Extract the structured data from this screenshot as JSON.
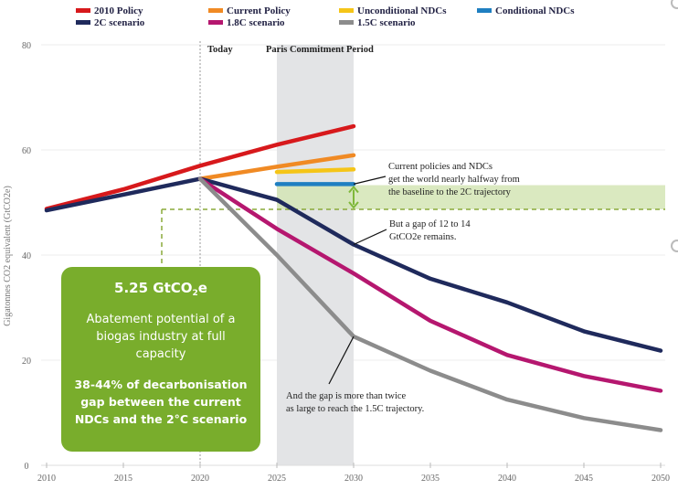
{
  "chart_data": {
    "type": "line",
    "title": "",
    "xlabel": "",
    "ylabel": "Gigatonnes CO2 equivalent (GtCO2e)",
    "xlim": [
      2010,
      2050
    ],
    "ylim": [
      0,
      80
    ],
    "xticks": [
      2010,
      2015,
      2020,
      2025,
      2030,
      2035,
      2040,
      2045,
      2050
    ],
    "yticks": [
      0,
      20,
      40,
      60,
      80
    ],
    "grid": "horizontal",
    "legend_position": "top",
    "legend": [
      {
        "name": "2010 Policy",
        "color": "#d7191c"
      },
      {
        "name": "Current Policy",
        "color": "#f08a24"
      },
      {
        "name": "Unconditional NDCs",
        "color": "#f5c518"
      },
      {
        "name": "Conditional NDCs",
        "color": "#1f7fc1"
      },
      {
        "name": "2C scenario",
        "color": "#1f2a5c"
      },
      {
        "name": "1.8C scenario",
        "color": "#b5176f"
      },
      {
        "name": "1.5C scenario",
        "color": "#8c8c8c"
      }
    ],
    "series": [
      {
        "name": "2010 Policy",
        "color": "#d7191c",
        "x": [
          2010,
          2015,
          2020,
          2025,
          2030
        ],
        "y": [
          48.8,
          52.5,
          57.0,
          61.0,
          64.5
        ]
      },
      {
        "name": "Current Policy",
        "color": "#f08a24",
        "x": [
          2020,
          2025,
          2030
        ],
        "y": [
          54.5,
          56.8,
          59.0
        ]
      },
      {
        "name": "Unconditional NDCs",
        "color": "#f5c518",
        "x": [
          2025,
          2030
        ],
        "y": [
          55.8,
          56.3
        ]
      },
      {
        "name": "Conditional NDCs",
        "color": "#1f7fc1",
        "x": [
          2025,
          2030
        ],
        "y": [
          53.5,
          53.5
        ]
      },
      {
        "name": "2C scenario",
        "color": "#1f2a5c",
        "x": [
          2010,
          2015,
          2020,
          2025,
          2030,
          2035,
          2040,
          2045,
          2050
        ],
        "y": [
          48.5,
          51.5,
          54.5,
          50.5,
          42.0,
          35.5,
          31.0,
          25.5,
          21.8
        ]
      },
      {
        "name": "1.8C scenario",
        "color": "#b5176f",
        "x": [
          2020,
          2025,
          2030,
          2035,
          2040,
          2045,
          2050
        ],
        "y": [
          54.5,
          45.0,
          36.5,
          27.5,
          21.0,
          17.0,
          14.2
        ]
      },
      {
        "name": "1.5C scenario",
        "color": "#8c8c8c",
        "x": [
          2020,
          2025,
          2030,
          2035,
          2040,
          2045,
          2050
        ],
        "y": [
          54.5,
          40.0,
          24.5,
          18.0,
          12.5,
          9.0,
          6.7
        ]
      }
    ],
    "markers": {
      "today": {
        "label": "Today",
        "year": 2020
      },
      "paris_period": {
        "label": "Paris Commitment Period",
        "from": 2025,
        "to": 2030,
        "color": "#e3e4e6"
      }
    },
    "gap_band": {
      "from_value": 48.7,
      "to_value": 53.3,
      "from_year": 2025,
      "color": "#d3e5b5",
      "dash_color": "#8aaa3a",
      "dash_corner_year": 2017.5
    },
    "annotations": [
      {
        "lines": [
          "Current policies and NDCs",
          "get the world nearly halfway from",
          "the baseline to the 2C trajectory"
        ],
        "points_to": {
          "year": 2030,
          "value": 53.5
        }
      },
      {
        "lines": [
          "But a gap of 12 to 14",
          "GtCO2e remains."
        ],
        "points_to": {
          "year": 2030,
          "value": 42.0
        }
      },
      {
        "lines": [
          "And the gap is more than twice",
          "as large to reach the 1.5C trajectory."
        ],
        "points_to": {
          "year": 2030,
          "value": 24.5
        }
      }
    ]
  },
  "callout": {
    "headline_main": "5.25 GtCO",
    "headline_sub": "2",
    "headline_suffix": "e",
    "description": "Abatement potential of a biogas industry at full capacity",
    "stat": "38-44% of decarbonisation gap between the current NDCs and the 2°C scenario",
    "background": "#79ad2c"
  }
}
